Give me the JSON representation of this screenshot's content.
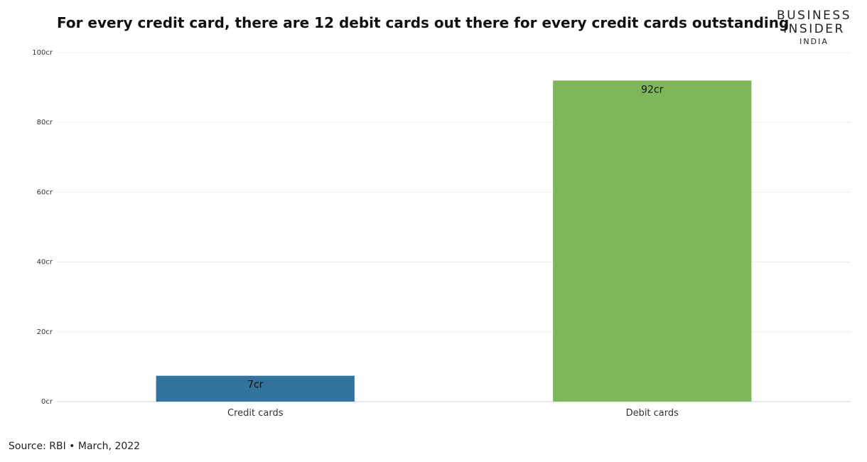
{
  "chart_data": {
    "type": "bar",
    "title": "For every credit card, there are 12 debit cards out there for every credit cards outstanding",
    "categories": [
      "Credit cards",
      "Debit cards"
    ],
    "values": [
      7.4,
      92
    ],
    "value_labels": [
      "7cr",
      "92cr"
    ],
    "colors": [
      "#31739c",
      "#80b65b"
    ],
    "ylim": [
      0,
      100
    ],
    "yticks": [
      0,
      20,
      40,
      60,
      80,
      100
    ],
    "ytick_labels": [
      "0cr",
      "20cr",
      "40cr",
      "60cr",
      "80cr",
      "100cr"
    ],
    "xlabel": "",
    "ylabel": "",
    "grid": true,
    "legend": "none"
  },
  "logo": {
    "line1": "BUSINESS",
    "line2": "INSIDER",
    "line3": "INDIA"
  },
  "source": "Source: RBI • March, 2022"
}
